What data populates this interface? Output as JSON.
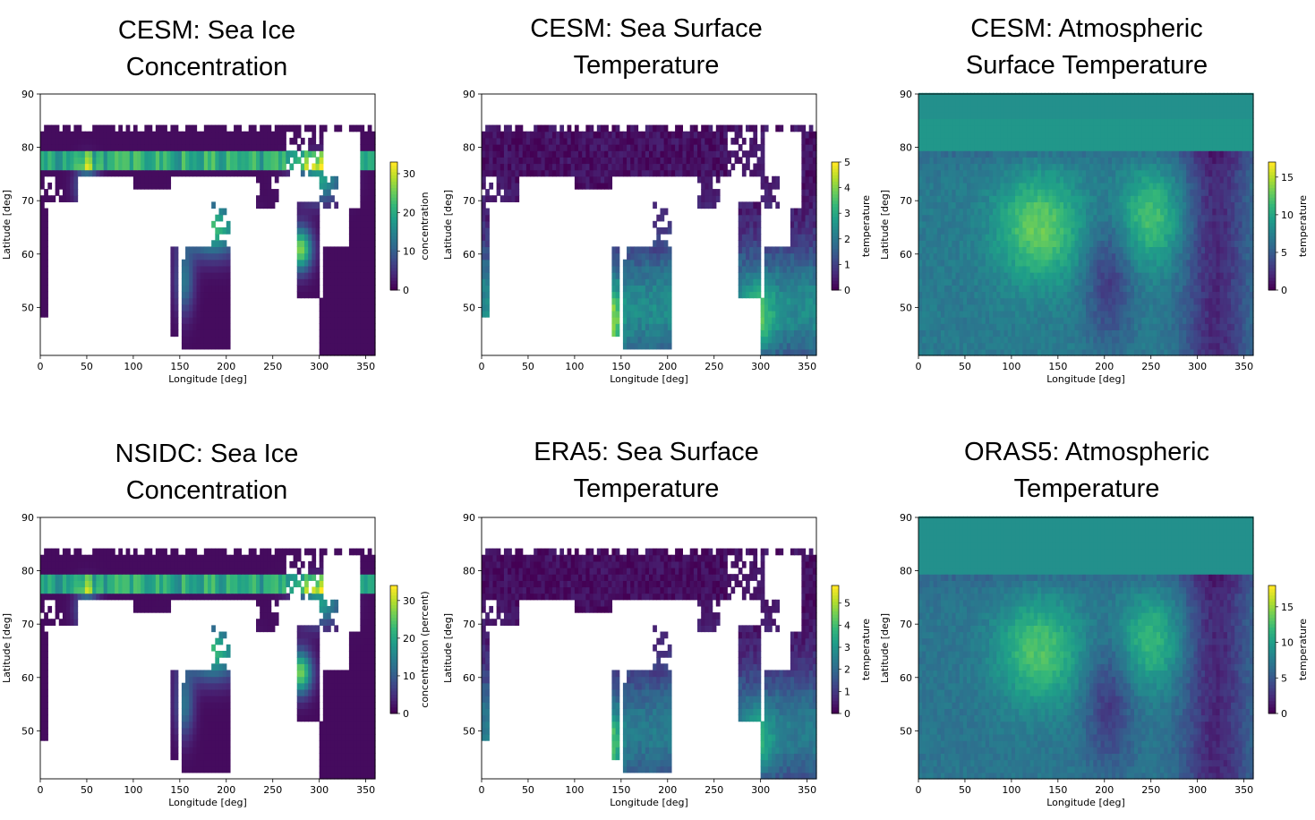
{
  "colormap": [
    "#440154",
    "#482878",
    "#3e4989",
    "#31688e",
    "#26828e",
    "#1f9e89",
    "#35b779",
    "#6ece58",
    "#b5de2b",
    "#fde725"
  ],
  "chart_data": [
    {
      "type": "heatmap",
      "title": "CESM: Sea Ice Concentration",
      "title_lines": [
        "CESM: Sea Ice",
        "Concentration"
      ],
      "xlabel": "Longitude [deg]",
      "ylabel": "Latitude [deg]",
      "xlim": [
        0,
        360
      ],
      "ylim": [
        41,
        90
      ],
      "xticks": [
        "0",
        "50",
        "100",
        "150",
        "200",
        "250",
        "300",
        "350"
      ],
      "yticks": [
        "50",
        "60",
        "70",
        "80",
        "90"
      ],
      "colorbar": {
        "label": "concentration",
        "min": 0,
        "max": 33,
        "ticks": [
          "0",
          "10",
          "20",
          "30"
        ]
      },
      "field": "ice"
    },
    {
      "type": "heatmap",
      "title": "CESM: Sea Surface Temperature",
      "title_lines": [
        "CESM: Sea Surface",
        "Temperature"
      ],
      "xlabel": "Longitude [deg]",
      "ylabel": "Latitude [deg]",
      "xlim": [
        0,
        360
      ],
      "ylim": [
        41,
        90
      ],
      "xticks": [
        "0",
        "50",
        "100",
        "150",
        "200",
        "250",
        "300",
        "350"
      ],
      "yticks": [
        "50",
        "60",
        "70",
        "80",
        "90"
      ],
      "colorbar": {
        "label": "temperature",
        "min": 0,
        "max": 5,
        "ticks": [
          "0",
          "1",
          "2",
          "3",
          "4",
          "5"
        ]
      },
      "field": "sst"
    },
    {
      "type": "heatmap",
      "title": "CESM: Atmospheric Surface Temperature",
      "title_lines": [
        "CESM: Atmospheric",
        "Surface Temperature"
      ],
      "xlabel": "Longitude [deg]",
      "ylabel": "Latitude [deg]",
      "xlim": [
        0,
        360
      ],
      "ylim": [
        41,
        90
      ],
      "xticks": [
        "0",
        "50",
        "100",
        "150",
        "200",
        "250",
        "300",
        "350"
      ],
      "yticks": [
        "50",
        "60",
        "70",
        "80",
        "90"
      ],
      "colorbar": {
        "label": "temperature",
        "min": 0,
        "max": 17,
        "ticks": [
          "0",
          "5",
          "10",
          "15"
        ]
      },
      "field": "atm"
    },
    {
      "type": "heatmap",
      "title": "NSIDC: Sea Ice Concentration",
      "title_lines": [
        "NSIDC: Sea Ice",
        "Concentration"
      ],
      "xlabel": "Longitude [deg]",
      "ylabel": "Latitude [deg]",
      "xlim": [
        0,
        360
      ],
      "ylim": [
        41,
        90
      ],
      "xticks": [
        "0",
        "50",
        "100",
        "150",
        "200",
        "250",
        "300",
        "350"
      ],
      "yticks": [
        "50",
        "60",
        "70",
        "80",
        "90"
      ],
      "colorbar": {
        "label": "concentration (percent)",
        "min": 0,
        "max": 34,
        "ticks": [
          "0",
          "10",
          "20",
          "30"
        ]
      },
      "field": "ice"
    },
    {
      "type": "heatmap",
      "title": "ERA5: Sea Surface Temperature",
      "title_lines": [
        "ERA5: Sea Surface",
        "Temperature"
      ],
      "xlabel": "Longitude [deg]",
      "ylabel": "Latitude [deg]",
      "xlim": [
        0,
        360
      ],
      "ylim": [
        41,
        90
      ],
      "xticks": [
        "0",
        "50",
        "100",
        "150",
        "200",
        "250",
        "300",
        "350"
      ],
      "yticks": [
        "50",
        "60",
        "70",
        "80",
        "90"
      ],
      "colorbar": {
        "label": "temperature",
        "min": 0,
        "max": 5.8,
        "ticks": [
          "0",
          "1",
          "2",
          "3",
          "4",
          "5"
        ]
      },
      "field": "sst"
    },
    {
      "type": "heatmap",
      "title": "ORAS5: Atmospheric Temperature",
      "title_lines": [
        "ORAS5: Atmospheric",
        "Temperature"
      ],
      "xlabel": "Longitude [deg]",
      "ylabel": "Latitude [deg]",
      "xlim": [
        0,
        360
      ],
      "ylim": [
        41,
        90
      ],
      "xticks": [
        "0",
        "50",
        "100",
        "150",
        "200",
        "250",
        "300",
        "350"
      ],
      "yticks": [
        "50",
        "60",
        "70",
        "80",
        "90"
      ],
      "colorbar": {
        "label": "temperature",
        "min": 0,
        "max": 18,
        "ticks": [
          "0",
          "5",
          "10",
          "15"
        ]
      },
      "field": "atm"
    }
  ]
}
